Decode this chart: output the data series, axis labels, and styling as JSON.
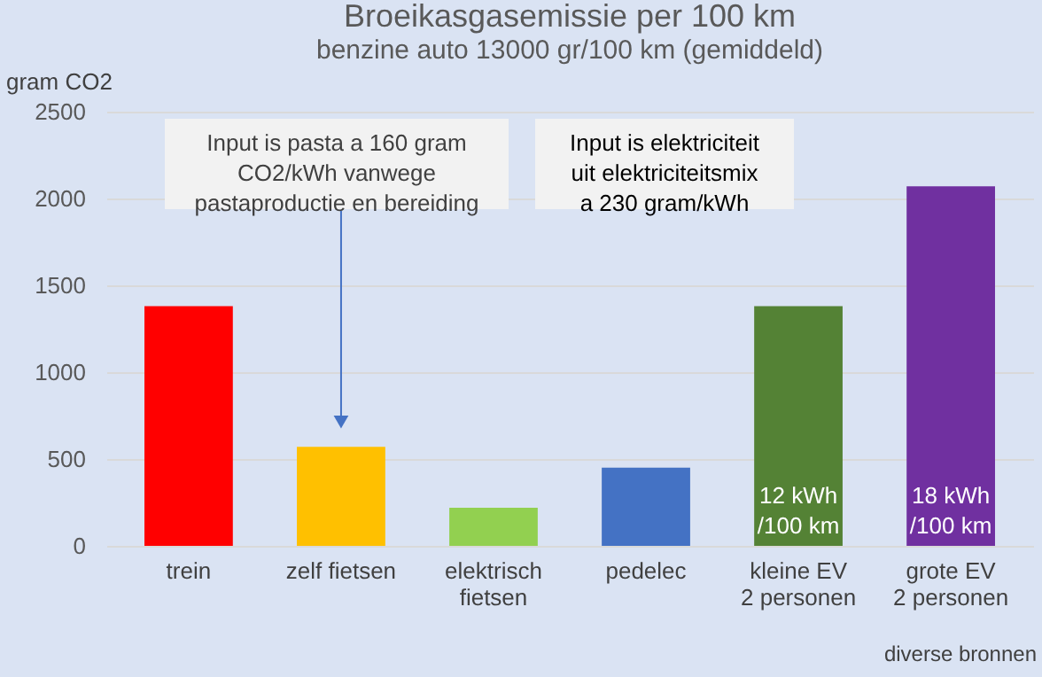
{
  "chart_data": {
    "type": "bar",
    "title": "Broeikasgasemissie per 100 km",
    "subtitle": "benzine auto 13000 gr/100 km  (gemiddeld)",
    "ylabel": "gram CO2",
    "categories": [
      "trein",
      "zelf fietsen",
      "elektrisch\nfietsen",
      "pedelec",
      "kleine EV\n2 personen",
      "grote EV\n2 personen"
    ],
    "values": [
      1380,
      570,
      220,
      450,
      1380,
      2070
    ],
    "colors": [
      "#ff0000",
      "#ffc000",
      "#92d050",
      "#4472c4",
      "#548235",
      "#7030a0"
    ],
    "annotations": [
      "Input is pasta a 160 gram\nCO2/kWh vanwege\npastaproductie en bereiding",
      "Input is  elektriciteit\nuit elektriciteitsmix\na 230 gram/kWh",
      "diverse bronnen",
      "12 kWh\n/100 km",
      "18 kWh\n/100 km"
    ],
    "ylim": [
      0,
      2500
    ],
    "yticks": [
      0,
      500,
      1000,
      1500,
      2000,
      2500
    ],
    "grid": "y",
    "legend": false
  }
}
